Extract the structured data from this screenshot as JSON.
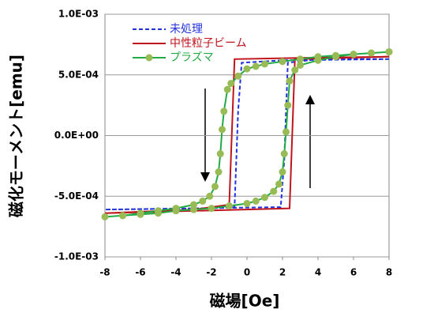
{
  "chart_data": {
    "type": "line",
    "xlabel": "磁場[Oe]",
    "ylabel": "磁化モーメント[emu]",
    "xlim": [
      -8,
      8
    ],
    "xticks": [
      -8,
      -6,
      -4,
      -2,
      0,
      2,
      4,
      6,
      8
    ],
    "ylim": [
      -0.001,
      0.001
    ],
    "yticks": [
      {
        "value": -0.001,
        "label": "-1.0E-03"
      },
      {
        "value": -0.0005,
        "label": "-5.0E-04"
      },
      {
        "value": 0,
        "label": "0.0E+00"
      },
      {
        "value": 0.0005,
        "label": "5.0E-04"
      },
      {
        "value": 0.001,
        "label": "1.0E-03"
      }
    ],
    "grid": true,
    "legend": "upper left",
    "series": [
      {
        "name": "未処理",
        "color": "#2233dd",
        "dash": true,
        "marker": false,
        "x": [
          8,
          2,
          -0.3,
          -0.5,
          -0.7,
          -2,
          -8,
          1.9,
          2.1,
          2.3,
          4,
          8
        ],
        "values": [
          0.00063,
          0.00062,
          0.0006,
          0.0002,
          -0.00059,
          -0.0006,
          -0.00061,
          -0.00059,
          -0.0002,
          0.0006,
          0.00063,
          0.00063
        ]
      },
      {
        "name": "中性粒子ビーム",
        "color": "#c0141c",
        "dash": false,
        "marker": false,
        "x": [
          8,
          3,
          -0.7,
          -1.0,
          -3,
          -8,
          2.4,
          2.7,
          8
        ],
        "values": [
          0.00065,
          0.00064,
          0.00063,
          -0.00057,
          -0.00061,
          -0.00064,
          -0.0006,
          0.00063,
          0.00065
        ]
      },
      {
        "name": "プラズマ",
        "color": "#22aa44",
        "marker_color": "#99bb55",
        "dash": false,
        "marker": true,
        "x": [
          8,
          7,
          6,
          5,
          4,
          3,
          2,
          1,
          0.5,
          0,
          -0.5,
          -0.9,
          -1.1,
          -1.3,
          -1.4,
          -1.5,
          -1.6,
          -1.8,
          -2.1,
          -2.5,
          -3,
          -4,
          -5,
          -6,
          -7,
          -8,
          -7,
          -6,
          -5,
          -4,
          -3,
          -2,
          -1,
          0,
          0.5,
          1,
          1.5,
          1.8,
          2.0,
          2.1,
          2.2,
          2.3,
          2.4,
          2.7,
          3,
          4,
          5,
          6,
          7,
          8
        ],
        "values": [
          0.00069,
          0.00068,
          0.00067,
          0.00066,
          0.00065,
          0.00063,
          0.00061,
          0.00059,
          0.00057,
          0.00055,
          0.00049,
          0.00043,
          0.00038,
          0.0002,
          5e-05,
          -0.00015,
          -0.0003,
          -0.00042,
          -0.0005,
          -0.00054,
          -0.00057,
          -0.0006,
          -0.00062,
          -0.00064,
          -0.00066,
          -0.00067,
          -0.00066,
          -0.00065,
          -0.00064,
          -0.00062,
          -0.00061,
          -0.0006,
          -0.00058,
          -0.00056,
          -0.00054,
          -0.00051,
          -0.00046,
          -0.0004,
          -0.0003,
          -0.00015,
          3e-05,
          0.00025,
          0.00045,
          0.00054,
          0.00058,
          0.00062,
          0.00065,
          0.00067,
          0.00068,
          0.00069
        ]
      }
    ]
  }
}
